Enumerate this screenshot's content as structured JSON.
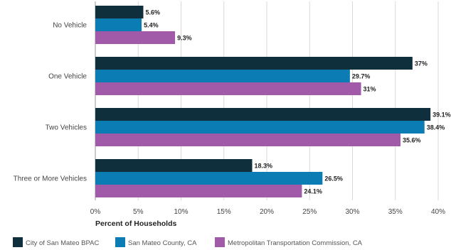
{
  "chart_data": {
    "type": "bar",
    "orientation": "horizontal",
    "categories": [
      "No Vehicle",
      "One Vehicle",
      "Two Vehicles",
      "Three or More Vehicles"
    ],
    "series": [
      {
        "name": "City of San Mateo BPAC",
        "color": "#0f2f3c",
        "values": [
          5.6,
          37,
          39.1,
          18.3
        ],
        "labels": [
          "5.6%",
          "37%",
          "39.1%",
          "18.3%"
        ]
      },
      {
        "name": "San Mateo County, CA",
        "color": "#0b7db4",
        "values": [
          5.4,
          29.7,
          38.4,
          26.5
        ],
        "labels": [
          "5.4%",
          "29.7%",
          "38.4%",
          "26.5%"
        ]
      },
      {
        "name": "Metropolitan Transportation Commission, CA",
        "color": "#a15aa8",
        "values": [
          9.3,
          31,
          35.6,
          24.1
        ],
        "labels": [
          "9.3%",
          "31%",
          "35.6%",
          "24.1%"
        ]
      }
    ],
    "xlabel": "Percent of Households",
    "ylabel": "",
    "xlim": [
      0,
      40
    ],
    "xticks": [
      0,
      5,
      10,
      15,
      20,
      25,
      30,
      35,
      40
    ],
    "xtick_labels": [
      "0%",
      "5%",
      "10%",
      "15%",
      "20%",
      "25%",
      "30%",
      "35%",
      "40%"
    ],
    "grid": true,
    "legend_position": "bottom"
  }
}
